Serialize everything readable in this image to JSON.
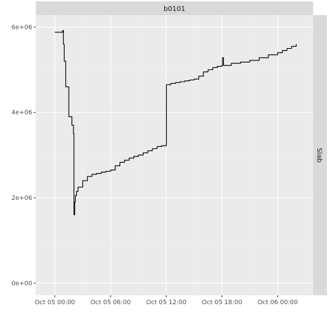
{
  "chart_data": {
    "type": "line",
    "title": "",
    "xlabel": "",
    "ylabel": "",
    "facet_top": "b0101",
    "facet_right": "Slab",
    "x_ticks": [
      "Oct 05 00:00",
      "Oct 05 06:00",
      "Oct 05 12:00",
      "Oct 05 18:00",
      "Oct 06 00:00"
    ],
    "y_ticks": [
      "0e+00",
      "2e+06",
      "4e+06",
      "6e+06"
    ],
    "y_tick_values": [
      0,
      2000000,
      4000000,
      6000000
    ],
    "xlim": [
      "2023-10-04 21:56",
      "2023-10-06 03:49"
    ],
    "ylim": [
      -285000,
      6280000
    ],
    "grid": true,
    "series": [
      {
        "color": "#000000",
        "x": [
          "2023-10-05 00:00",
          "2023-10-05 00:30",
          "2023-10-05 00:50",
          "2023-10-05 00:55",
          "2023-10-05 01:00",
          "2023-10-05 01:10",
          "2023-10-05 01:30",
          "2023-10-05 01:50",
          "2023-10-05 02:00",
          "2023-10-05 02:03",
          "2023-10-05 02:08",
          "2023-10-05 02:12",
          "2023-10-05 02:20",
          "2023-10-05 02:30",
          "2023-10-05 03:00",
          "2023-10-05 03:30",
          "2023-10-05 04:00",
          "2023-10-05 04:30",
          "2023-10-05 05:00",
          "2023-10-05 05:30",
          "2023-10-05 06:00",
          "2023-10-05 06:30",
          "2023-10-05 07:00",
          "2023-10-05 07:30",
          "2023-10-05 08:00",
          "2023-10-05 08:30",
          "2023-10-05 09:00",
          "2023-10-05 09:30",
          "2023-10-05 10:00",
          "2023-10-05 10:30",
          "2023-10-05 11:00",
          "2023-10-05 11:30",
          "2023-10-05 12:00",
          "2023-10-05 12:01",
          "2023-10-05 12:30",
          "2023-10-05 13:00",
          "2023-10-05 13:30",
          "2023-10-05 14:00",
          "2023-10-05 14:30",
          "2023-10-05 15:00",
          "2023-10-05 15:30",
          "2023-10-05 16:00",
          "2023-10-05 16:30",
          "2023-10-05 17:00",
          "2023-10-05 17:30",
          "2023-10-05 18:00",
          "2023-10-05 18:03",
          "2023-10-05 18:10",
          "2023-10-05 19:00",
          "2023-10-05 20:00",
          "2023-10-05 21:00",
          "2023-10-05 22:00",
          "2023-10-05 23:00",
          "2023-10-06 00:00",
          "2023-10-06 00:30",
          "2023-10-06 01:00",
          "2023-10-06 01:30",
          "2023-10-06 02:00"
        ],
        "values": [
          5880000,
          5880000,
          5920000,
          5600000,
          5200000,
          4600000,
          3900000,
          3700000,
          3500000,
          1600000,
          1900000,
          2050000,
          2150000,
          2250000,
          2400000,
          2500000,
          2550000,
          2570000,
          2600000,
          2620000,
          2650000,
          2750000,
          2830000,
          2880000,
          2930000,
          2970000,
          3000000,
          3050000,
          3100000,
          3150000,
          3200000,
          3220000,
          3250000,
          4650000,
          4680000,
          4700000,
          4720000,
          4740000,
          4760000,
          4780000,
          4850000,
          4950000,
          5000000,
          5050000,
          5080000,
          5100000,
          5280000,
          5100000,
          5150000,
          5180000,
          5220000,
          5280000,
          5350000,
          5400000,
          5450000,
          5500000,
          5550000,
          5600000
        ]
      }
    ]
  }
}
